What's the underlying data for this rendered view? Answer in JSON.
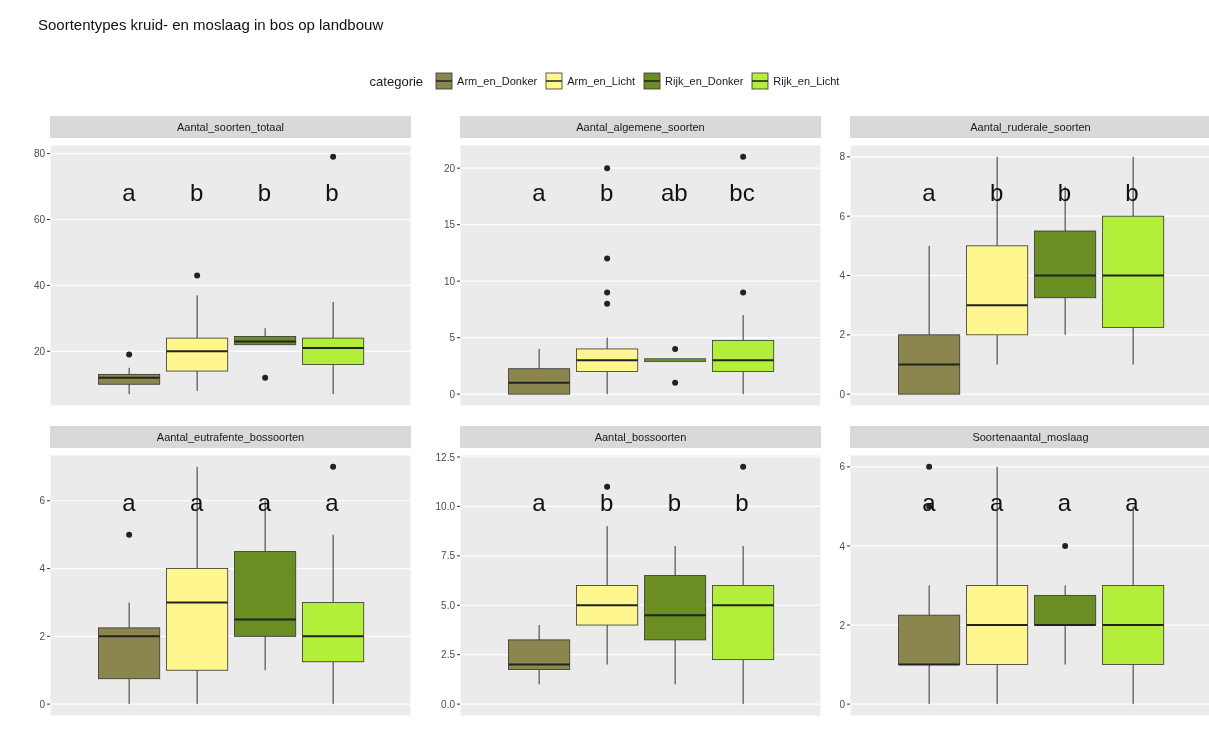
{
  "chart_data": [
    {
      "type": "box",
      "title": "Soortentypes kruid- en moslaag in bos op landbouw",
      "subtitle": "Aantal_soorten_totaal",
      "legend": "top",
      "legend_title": "categorie",
      "categories": [
        null
      ],
      "tick_labels": "y",
      "grid": true,
      "ylim": [
        3.4,
        82.6
      ],
      "yticks": [
        20,
        40,
        60,
        80
      ],
      "series": [
        {
          "name": "Arm_en_Donker",
          "color": "#8b864e",
          "boxes": [
            {
              "low": 7,
              "q1": 10,
              "median": 12,
              "q3": 13,
              "high": 15,
              "outliers": [
                19
              ]
            }
          ]
        },
        {
          "name": "Arm_en_Licht",
          "color": "#fff68f",
          "boxes": [
            {
              "low": 8,
              "q1": 14,
              "median": 20,
              "q3": 24,
              "high": 37,
              "outliers": [
                43
              ]
            }
          ]
        },
        {
          "name": "Rijk_en_Donker",
          "color": "#6b8e23",
          "boxes": [
            {
              "low": 22,
              "q1": 22,
              "median": 23,
              "q3": 24.5,
              "high": 27,
              "outliers": [
                12
              ]
            }
          ]
        },
        {
          "name": "Rijk_en_Licht",
          "color": "#b3ee3a",
          "boxes": [
            {
              "low": 7,
              "q1": 16,
              "median": 21,
              "q3": 24,
              "high": 35,
              "outliers": [
                79
              ]
            }
          ]
        }
      ],
      "annotations": [
        "a",
        "b",
        "b",
        "b"
      ]
    },
    {
      "type": "box",
      "subtitle": "Aantal_algemene_soorten",
      "categories": [
        null
      ],
      "tick_labels": "y",
      "grid": true,
      "ylim": [
        -1.05,
        22.05
      ],
      "yticks": [
        0,
        5,
        10,
        15,
        20
      ],
      "series": [
        {
          "color": "#8b864e",
          "boxes": [
            {
              "low": 0,
              "q1": 0,
              "median": 1,
              "q3": 2.25,
              "high": 4
            }
          ]
        },
        {
          "color": "#fff68f",
          "boxes": [
            {
              "low": 0,
              "q1": 2,
              "median": 3,
              "q3": 4,
              "high": 5,
              "outliers": [
                8,
                9,
                12,
                20
              ]
            }
          ]
        },
        {
          "color": "#6b8e23",
          "boxes": [
            {
              "low": 3,
              "q1": 3,
              "median": 3,
              "q3": 3,
              "high": 3,
              "outliers": [
                1,
                4
              ]
            }
          ]
        },
        {
          "color": "#b3ee3a",
          "boxes": [
            {
              "low": 0,
              "q1": 2,
              "median": 3,
              "q3": 4.75,
              "high": 7,
              "outliers": [
                9,
                21
              ]
            }
          ]
        }
      ],
      "annotations": [
        "a",
        "b",
        "ab",
        "bc"
      ]
    },
    {
      "type": "box",
      "subtitle": "Aantal_ruderale_soorten",
      "categories": [
        null
      ],
      "tick_labels": "y",
      "grid": true,
      "ylim": [
        -0.4,
        8.4
      ],
      "yticks": [
        0,
        2,
        4,
        6,
        8
      ],
      "series": [
        {
          "color": "#8b864e",
          "boxes": [
            {
              "low": 0,
              "q1": 0,
              "median": 1,
              "q3": 2,
              "high": 5
            }
          ]
        },
        {
          "color": "#fff68f",
          "boxes": [
            {
              "low": 1,
              "q1": 2,
              "median": 3,
              "q3": 5,
              "high": 8
            }
          ]
        },
        {
          "color": "#6b8e23",
          "boxes": [
            {
              "low": 2,
              "q1": 3.25,
              "median": 4,
              "q3": 5.5,
              "high": 7
            }
          ]
        },
        {
          "color": "#b3ee3a",
          "boxes": [
            {
              "low": 1,
              "q1": 2.25,
              "median": 4,
              "q3": 6,
              "high": 8
            }
          ]
        }
      ],
      "annotations": [
        "a",
        "b",
        "b",
        "b"
      ]
    },
    {
      "type": "box",
      "subtitle": "Aantal_eutrafente_bossoorten",
      "categories": [
        null
      ],
      "tick_labels": "y",
      "grid": true,
      "ylim": [
        -0.35,
        7.35
      ],
      "yticks": [
        0,
        2,
        4,
        6
      ],
      "series": [
        {
          "color": "#8b864e",
          "boxes": [
            {
              "low": 0,
              "q1": 0.75,
              "median": 2,
              "q3": 2.25,
              "high": 3,
              "outliers": [
                5
              ]
            }
          ]
        },
        {
          "color": "#fff68f",
          "boxes": [
            {
              "low": 0,
              "q1": 1,
              "median": 3,
              "q3": 4,
              "high": 7
            }
          ]
        },
        {
          "color": "#6b8e23",
          "boxes": [
            {
              "low": 1,
              "q1": 2,
              "median": 2.5,
              "q3": 4.5,
              "high": 6
            }
          ]
        },
        {
          "color": "#b3ee3a",
          "boxes": [
            {
              "low": 0,
              "q1": 1.25,
              "median": 2,
              "q3": 3,
              "high": 5,
              "outliers": [
                7
              ]
            }
          ]
        }
      ],
      "annotations": [
        "a",
        "a",
        "a",
        "a"
      ]
    },
    {
      "type": "box",
      "subtitle": "Aantal_bossoorten",
      "categories": [
        null
      ],
      "tick_labels": "y",
      "grid": true,
      "ylim": [
        -0.6,
        12.6
      ],
      "yticks": [
        {
          "value": 0,
          "label": "0.0"
        },
        {
          "value": 2.5,
          "label": "2.5"
        },
        {
          "value": 5,
          "label": "5.0"
        },
        {
          "value": 7.5,
          "label": "7.5"
        },
        {
          "value": 10,
          "label": "10.0"
        },
        {
          "value": 12.5,
          "label": "12.5"
        }
      ],
      "series": [
        {
          "color": "#8b864e",
          "boxes": [
            {
              "low": 1,
              "q1": 1.75,
              "median": 2,
              "q3": 3.25,
              "high": 4
            }
          ]
        },
        {
          "color": "#fff68f",
          "boxes": [
            {
              "low": 2,
              "q1": 4,
              "median": 5,
              "q3": 6,
              "high": 9,
              "outliers": [
                11
              ]
            }
          ]
        },
        {
          "color": "#6b8e23",
          "boxes": [
            {
              "low": 1,
              "q1": 3.25,
              "median": 4.5,
              "q3": 6.5,
              "high": 8
            }
          ]
        },
        {
          "color": "#b3ee3a",
          "boxes": [
            {
              "low": 0,
              "q1": 2.25,
              "median": 5,
              "q3": 6,
              "high": 8,
              "outliers": [
                12
              ]
            }
          ]
        }
      ],
      "annotations": [
        "a",
        "b",
        "b",
        "b"
      ]
    },
    {
      "type": "box",
      "subtitle": "Soortenaantal_moslaag",
      "categories": [
        null
      ],
      "tick_labels": "y",
      "grid": true,
      "ylim": [
        -0.3,
        6.3
      ],
      "yticks": [
        0,
        2,
        4,
        6
      ],
      "series": [
        {
          "color": "#8b864e",
          "boxes": [
            {
              "low": 0,
              "q1": 1,
              "median": 1,
              "q3": 2.25,
              "high": 3,
              "outliers": [
                5,
                6
              ]
            }
          ]
        },
        {
          "color": "#fff68f",
          "boxes": [
            {
              "low": 0,
              "q1": 1,
              "median": 2,
              "q3": 3,
              "high": 6
            }
          ]
        },
        {
          "color": "#6b8e23",
          "boxes": [
            {
              "low": 1,
              "q1": 2,
              "median": 2,
              "q3": 2.75,
              "high": 3,
              "outliers": [
                4
              ]
            }
          ]
        },
        {
          "color": "#b3ee3a",
          "boxes": [
            {
              "low": 0,
              "q1": 1,
              "median": 2,
              "q3": 3,
              "high": 5
            }
          ]
        }
      ],
      "annotations": [
        "a",
        "a",
        "a",
        "a"
      ]
    }
  ]
}
